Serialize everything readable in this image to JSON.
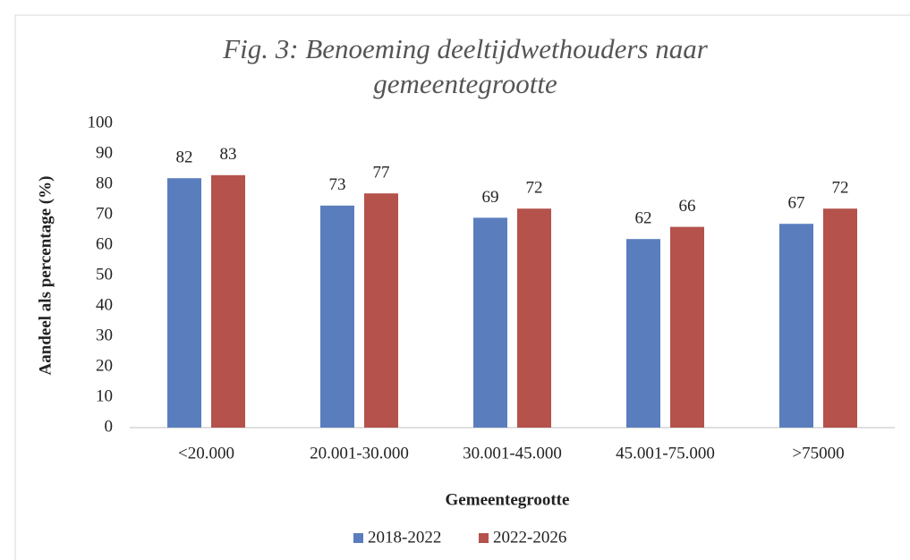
{
  "chart_data": {
    "type": "bar",
    "title": [
      "Fig. 3: Benoeming deeltijdwethouders naar",
      "gemeentegrootte"
    ],
    "xlabel": "Gemeentegrootte",
    "ylabel": "Aandeel als percentage (%)",
    "categories": [
      "<20.000",
      "20.001-30.000",
      "30.001-45.000",
      "45.001-75.000",
      ">75000"
    ],
    "series": [
      {
        "name": "2018-2022",
        "color": "#5a7ebd",
        "values": [
          82,
          73,
          69,
          62,
          67
        ]
      },
      {
        "name": "2022-2026",
        "color": "#b4524b",
        "values": [
          83,
          77,
          72,
          66,
          72
        ]
      }
    ],
    "ylim": [
      0,
      100
    ],
    "yticks": [
      0,
      10,
      20,
      30,
      40,
      50,
      60,
      70,
      80,
      90,
      100
    ],
    "grid": false,
    "legend": "bottom"
  }
}
